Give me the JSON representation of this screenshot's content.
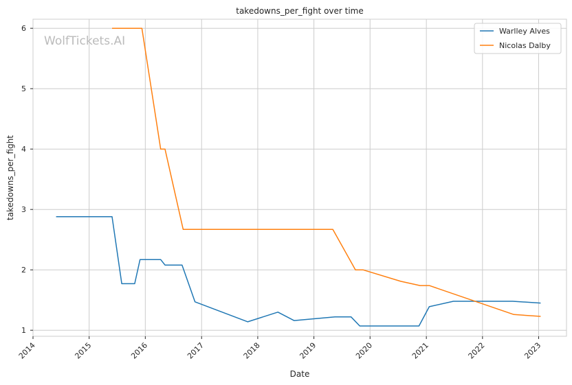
{
  "chart_data": {
    "type": "line",
    "title": "takedowns_per_fight over time",
    "xlabel": "Date",
    "ylabel": "takedowns_per_fight",
    "watermark": "WolfTickets.AI",
    "grid": true,
    "legend_position": "top-right",
    "x_ticks": [
      "2014",
      "2015",
      "2016",
      "2017",
      "2018",
      "2019",
      "2020",
      "2021",
      "2022",
      "2023"
    ],
    "y_ticks": [
      1,
      2,
      3,
      4,
      5,
      6
    ],
    "xlim": [
      "2014-01-01",
      "2023-07-01"
    ],
    "ylim": [
      0.9,
      6.15
    ],
    "series": [
      {
        "name": "Warlley Alves",
        "color": "#1f77b4",
        "points": [
          [
            "2014-05-31",
            2.88
          ],
          [
            "2015-05-30",
            2.88
          ],
          [
            "2015-08-01",
            1.77
          ],
          [
            "2015-10-24",
            1.77
          ],
          [
            "2015-11-28",
            2.17
          ],
          [
            "2016-04-10",
            2.17
          ],
          [
            "2016-05-08",
            2.08
          ],
          [
            "2016-08-27",
            2.08
          ],
          [
            "2016-11-19",
            1.47
          ],
          [
            "2017-10-28",
            1.14
          ],
          [
            "2018-05-12",
            1.3
          ],
          [
            "2018-08-25",
            1.16
          ],
          [
            "2019-05-18",
            1.22
          ],
          [
            "2019-08-31",
            1.22
          ],
          [
            "2019-10-26",
            1.07
          ],
          [
            "2020-11-14",
            1.07
          ],
          [
            "2021-01-20",
            1.39
          ],
          [
            "2021-06-26",
            1.48
          ],
          [
            "2022-07-16",
            1.48
          ],
          [
            "2023-01-14",
            1.45
          ]
        ]
      },
      {
        "name": "Nicolas Dalby",
        "color": "#ff7f0e",
        "points": [
          [
            "2015-05-30",
            6.0
          ],
          [
            "2015-12-10",
            6.0
          ],
          [
            "2016-04-10",
            4.0
          ],
          [
            "2016-05-08",
            4.0
          ],
          [
            "2016-09-03",
            2.67
          ],
          [
            "2019-05-04",
            2.67
          ],
          [
            "2019-09-28",
            2.0
          ],
          [
            "2019-11-16",
            2.0
          ],
          [
            "2020-07-18",
            1.81
          ],
          [
            "2020-11-21",
            1.74
          ],
          [
            "2021-01-20",
            1.74
          ],
          [
            "2022-07-23",
            1.26
          ],
          [
            "2023-01-14",
            1.23
          ]
        ]
      }
    ]
  }
}
